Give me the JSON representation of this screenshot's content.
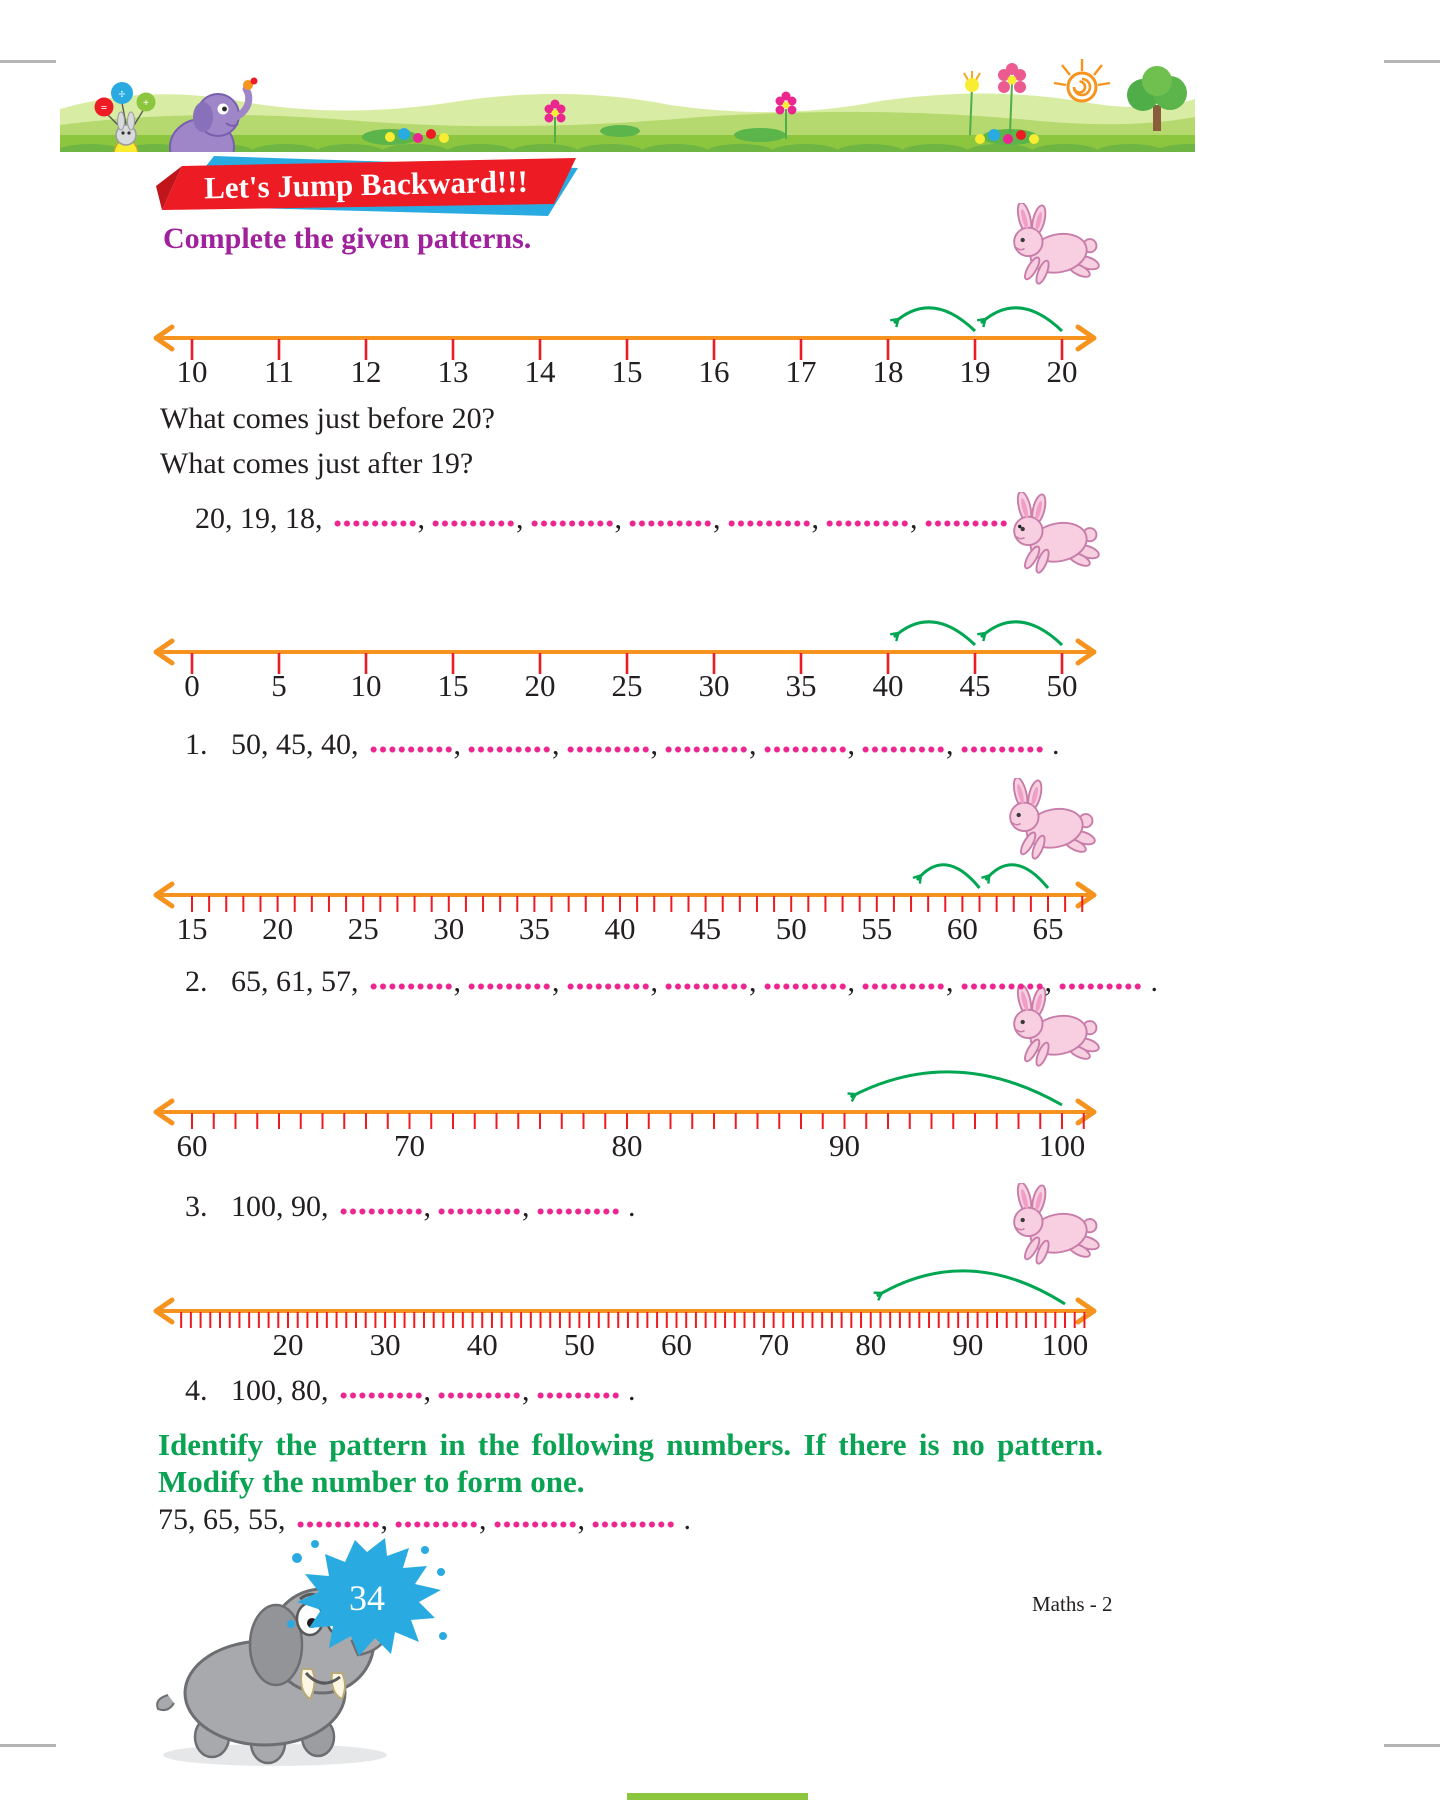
{
  "banner": {
    "title": "Let's Jump Backward!!!",
    "mascots": [
      "rabbit-with-balloons",
      "elephant",
      "flowers",
      "sun",
      "tree"
    ]
  },
  "subtitle": "Complete the given patterns.",
  "questions": [
    {
      "text": "What comes just before 20?"
    },
    {
      "text": "What comes just after 19?"
    }
  ],
  "patterns": [
    {
      "number": "",
      "given": "20, 19, 18,",
      "blanks": 7,
      "end": "."
    },
    {
      "number": "1.",
      "given": "50, 45, 40,",
      "blanks": 7,
      "end": "."
    },
    {
      "number": "2.",
      "given": "65, 61, 57,",
      "blanks": 8,
      "end": "."
    },
    {
      "number": "3.",
      "given": "100, 90,",
      "blanks": 3,
      "end": "."
    },
    {
      "number": "4.",
      "given": "100, 80,",
      "blanks": 3,
      "end": "."
    },
    {
      "number": "",
      "given": "75, 65, 55,",
      "blanks": 4,
      "end": "."
    }
  ],
  "instruction": {
    "line1": "Identify the pattern in the following numbers. If there is no pattern.",
    "line2": "Modify the number to form one."
  },
  "number_lines": [
    {
      "min": 10,
      "max": 20,
      "label_step": 1,
      "labels": [
        10,
        11,
        12,
        13,
        14,
        15,
        16,
        17,
        18,
        19,
        20
      ],
      "unit_ticks": false,
      "jumps": [
        [
          20,
          19
        ],
        [
          19,
          18
        ]
      ],
      "layout": {
        "x_min": 42,
        "x_max": 912,
        "tick_from": 10,
        "tick_to": 20
      }
    },
    {
      "min": 0,
      "max": 50,
      "label_step": 5,
      "labels": [
        0,
        5,
        10,
        15,
        20,
        25,
        30,
        35,
        40,
        45,
        50
      ],
      "unit_ticks": false,
      "jumps": [
        [
          50,
          45
        ],
        [
          45,
          40
        ]
      ],
      "layout": {
        "x_min": 42,
        "x_max": 912,
        "tick_from": 0,
        "tick_to": 50
      }
    },
    {
      "min": 15,
      "max": 65,
      "label_step": 5,
      "labels": [
        15,
        20,
        25,
        30,
        35,
        40,
        45,
        50,
        55,
        60,
        65
      ],
      "unit_ticks": true,
      "jumps": [
        [
          65,
          61
        ],
        [
          61,
          57
        ]
      ],
      "layout": {
        "x_min": 42,
        "x_max": 898,
        "tick_from": 15,
        "tick_to": 67
      }
    },
    {
      "min": 60,
      "max": 100,
      "label_step": 10,
      "labels": [
        60,
        70,
        80,
        90,
        100
      ],
      "unit_ticks": true,
      "jumps": [
        [
          100,
          90
        ]
      ],
      "layout": {
        "x_min": 42,
        "x_max": 912,
        "tick_from": 60,
        "tick_to": 101
      }
    },
    {
      "min": 20,
      "max": 100,
      "label_step": 10,
      "labels": [
        20,
        30,
        40,
        50,
        60,
        70,
        80,
        90,
        100
      ],
      "unit_ticks": true,
      "jumps": [
        [
          100,
          80
        ]
      ],
      "layout": {
        "x_min": 138,
        "x_max": 915,
        "tick_from": 9,
        "tick_to": 102
      }
    }
  ],
  "footer": {
    "page_number": "34",
    "book_label": "Maths - 2"
  },
  "colors": {
    "line_orange": "#f6921e",
    "tick_red": "#ed1c24",
    "arc_green": "#00a651",
    "dot_pink": "#ec268f",
    "instruction_green": "#0aa353",
    "subtitle_purple": "#a0219c",
    "ribbon_red": "#ed1c24",
    "ribbon_blue": "#29abe2",
    "splash_blue": "#29abe2",
    "text_black": "#231f20"
  }
}
